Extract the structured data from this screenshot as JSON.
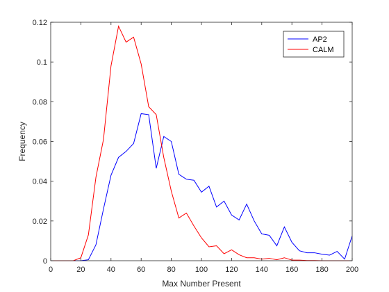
{
  "chart_data": {
    "type": "line",
    "title": "",
    "xlabel": "Max Number Present",
    "ylabel": "Frequency",
    "xlim": [
      0,
      200
    ],
    "ylim": [
      0,
      0.12
    ],
    "xticks": [
      0,
      20,
      40,
      60,
      80,
      100,
      120,
      140,
      160,
      180,
      200
    ],
    "yticks": [
      0,
      0.02,
      0.04,
      0.06,
      0.08,
      0.1,
      0.12
    ],
    "grid": false,
    "legend": "top-right",
    "series": [
      {
        "name": "AP2",
        "color": "#0000ff",
        "x": [
          0,
          5,
          10,
          15,
          20,
          25,
          30,
          35,
          40,
          45,
          50,
          55,
          60,
          65,
          70,
          75,
          80,
          85,
          90,
          95,
          100,
          105,
          110,
          115,
          120,
          125,
          130,
          135,
          140,
          145,
          150,
          155,
          160,
          165,
          170,
          175,
          180,
          185,
          190,
          195,
          200
        ],
        "y": [
          0,
          0,
          0,
          0,
          0,
          0.0005,
          0.008,
          0.026,
          0.043,
          0.052,
          0.055,
          0.059,
          0.074,
          0.0735,
          0.0465,
          0.0625,
          0.06,
          0.0435,
          0.041,
          0.0405,
          0.0345,
          0.0375,
          0.027,
          0.03,
          0.023,
          0.0205,
          0.0285,
          0.02,
          0.0135,
          0.0128,
          0.0075,
          0.017,
          0.0093,
          0.005,
          0.004,
          0.004,
          0.0033,
          0.0028,
          0.0047,
          0.0008,
          0.0125
        ]
      },
      {
        "name": "CALM",
        "color": "#ff0000",
        "x": [
          0,
          5,
          10,
          15,
          20,
          25,
          30,
          35,
          40,
          45,
          50,
          55,
          60,
          65,
          70,
          75,
          80,
          85,
          90,
          95,
          100,
          105,
          110,
          115,
          120,
          125,
          130,
          135,
          140,
          145,
          150,
          155,
          160,
          165,
          170,
          175,
          180,
          185,
          190,
          195,
          200
        ],
        "y": [
          0,
          0,
          0,
          0,
          0.0015,
          0.013,
          0.042,
          0.061,
          0.098,
          0.118,
          0.11,
          0.1125,
          0.099,
          0.0775,
          0.0735,
          0.052,
          0.035,
          0.0215,
          0.024,
          0.0175,
          0.0115,
          0.007,
          0.0075,
          0.0035,
          0.0055,
          0.003,
          0.0015,
          0.0015,
          0.0008,
          0.0012,
          0.0005,
          0.0015,
          0.0003,
          0.0003,
          0.0001,
          0.0001,
          0,
          0,
          0,
          0,
          0
        ]
      }
    ]
  }
}
